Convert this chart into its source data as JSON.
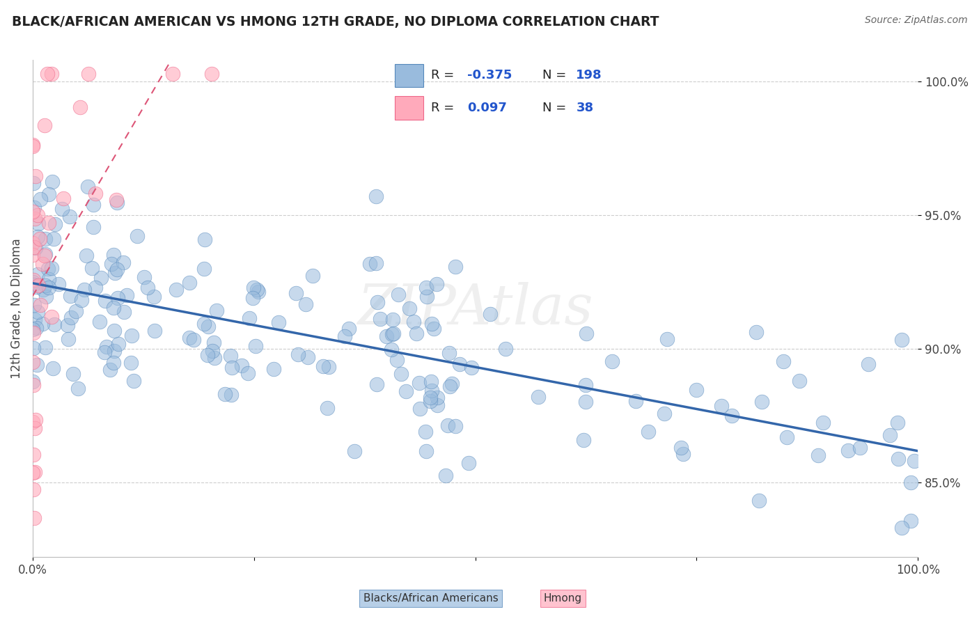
{
  "title": "BLACK/AFRICAN AMERICAN VS HMONG 12TH GRADE, NO DIPLOMA CORRELATION CHART",
  "source": "Source: ZipAtlas.com",
  "ylabel": "12th Grade, No Diploma",
  "watermark": "ZIPAtlas",
  "legend_blue_label": "Blacks/African Americans",
  "legend_pink_label": "Hmong",
  "r_blue": -0.375,
  "n_blue": 198,
  "r_pink": 0.097,
  "n_pink": 38,
  "blue_color": "#99BBDD",
  "blue_edge": "#5588BB",
  "pink_color": "#FFAABB",
  "pink_edge": "#EE6688",
  "trend_blue_color": "#3366AA",
  "trend_pink_color": "#DD5577",
  "xmin": 0.0,
  "xmax": 1.0,
  "ymin": 0.822,
  "ymax": 1.008,
  "yticks": [
    0.85,
    0.9,
    0.95,
    1.0
  ],
  "ytick_labels": [
    "85.0%",
    "90.0%",
    "95.0%",
    "100.0%"
  ]
}
